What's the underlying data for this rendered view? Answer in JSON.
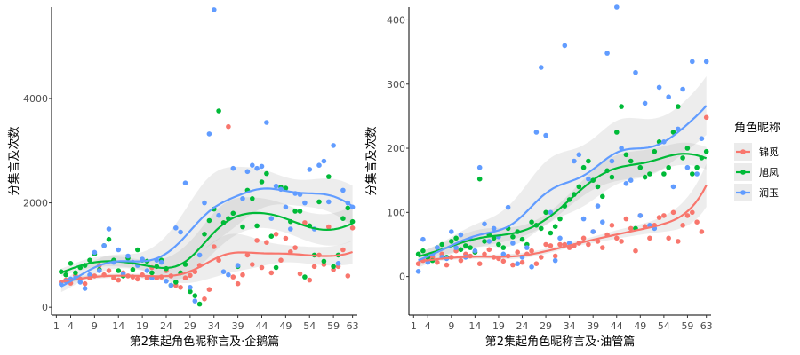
{
  "chart_data": [
    {
      "type": "scatter",
      "xlabel": "第2集起角色昵称言及·企鹅篇",
      "ylabel": "分集言及次数",
      "xlim": [
        0,
        64
      ],
      "ylim": [
        -150,
        5750
      ],
      "x_ticks": [
        1,
        4,
        9,
        14,
        19,
        24,
        29,
        34,
        39,
        44,
        49,
        54,
        59,
        63
      ],
      "y_ticks": [
        0,
        2000,
        4000
      ],
      "smooth": "loess with confidence band",
      "series": [
        {
          "name": "锦觅",
          "x": [
            2,
            3,
            4,
            5,
            6,
            7,
            8,
            9,
            10,
            11,
            12,
            13,
            14,
            15,
            16,
            17,
            18,
            19,
            20,
            21,
            22,
            23,
            24,
            25,
            26,
            27,
            28,
            29,
            30,
            31,
            32,
            33,
            34,
            35,
            36,
            37,
            38,
            39,
            40,
            41,
            42,
            43,
            44,
            45,
            46,
            47,
            48,
            49,
            50,
            51,
            52,
            53,
            54,
            55,
            56,
            57,
            58,
            59,
            60,
            61,
            62,
            63
          ],
          "y": [
            480,
            520,
            460,
            610,
            540,
            450,
            560,
            600,
            800,
            620,
            700,
            560,
            520,
            660,
            600,
            580,
            540,
            620,
            560,
            760,
            560,
            580,
            700,
            600,
            420,
            380,
            560,
            610,
            680,
            800,
            160,
            340,
            1160,
            900,
            1620,
            3460,
            580,
            450,
            620,
            1000,
            820,
            1280,
            760,
            1240,
            660,
            1400,
            900,
            1320,
            1060,
            1140,
            640,
            1620,
            520,
            780,
            1000,
            820,
            1540,
            720,
            780,
            1100,
            600,
            1520
          ]
        },
        {
          "name": "旭凤",
          "x": [
            2,
            3,
            4,
            5,
            6,
            7,
            8,
            9,
            10,
            11,
            12,
            13,
            14,
            15,
            16,
            17,
            18,
            19,
            20,
            21,
            22,
            23,
            24,
            25,
            26,
            27,
            28,
            29,
            30,
            31,
            32,
            33,
            34,
            35,
            36,
            37,
            38,
            39,
            40,
            41,
            42,
            43,
            44,
            45,
            46,
            47,
            48,
            49,
            50,
            51,
            52,
            53,
            54,
            55,
            56,
            57,
            58,
            59,
            60,
            61,
            62,
            63
          ],
          "y": [
            680,
            620,
            840,
            660,
            760,
            800,
            900,
            1020,
            720,
            1180,
            1300,
            900,
            700,
            600,
            940,
            720,
            1100,
            900,
            880,
            660,
            780,
            900,
            740,
            420,
            480,
            660,
            820,
            300,
            220,
            60,
            1400,
            1660,
            1880,
            3760,
            1620,
            1700,
            1800,
            780,
            1540,
            2240,
            2080,
            1560,
            2400,
            2560,
            1360,
            760,
            2300,
            2280,
            1640,
            1840,
            1840,
            580,
            1560,
            1000,
            2020,
            880,
            2500,
            780,
            1000,
            1700,
            1900,
            1640
          ]
        },
        {
          "name": "润玉",
          "x": [
            2,
            3,
            4,
            5,
            6,
            7,
            8,
            9,
            10,
            11,
            12,
            13,
            14,
            15,
            16,
            17,
            18,
            19,
            20,
            21,
            22,
            23,
            24,
            25,
            26,
            27,
            28,
            29,
            30,
            31,
            32,
            33,
            34,
            35,
            36,
            37,
            38,
            39,
            40,
            41,
            42,
            43,
            44,
            45,
            46,
            47,
            48,
            49,
            50,
            51,
            52,
            53,
            54,
            55,
            56,
            57,
            58,
            59,
            60,
            61,
            62,
            63
          ],
          "y": [
            440,
            500,
            540,
            560,
            480,
            360,
            620,
            1050,
            700,
            1180,
            1500,
            860,
            1100,
            640,
            980,
            860,
            800,
            920,
            700,
            560,
            900,
            860,
            500,
            420,
            1520,
            1440,
            2380,
            380,
            120,
            1000,
            2000,
            3320,
            5700,
            1760,
            680,
            620,
            2660,
            800,
            2080,
            2600,
            2720,
            2660,
            2700,
            3540,
            1700,
            2320,
            2260,
            1920,
            1500,
            2180,
            2160,
            2000,
            2640,
            1500,
            2720,
            2800,
            2020,
            3100,
            840,
            2240,
            2000,
            1920
          ]
        }
      ]
    },
    {
      "type": "scatter",
      "xlabel": "第2集起角色昵称言及·油管篇",
      "ylabel": "分集言及次数",
      "xlim": [
        0,
        64
      ],
      "ylim": [
        -60,
        420
      ],
      "x_ticks": [
        1,
        4,
        9,
        14,
        19,
        24,
        29,
        34,
        39,
        44,
        49,
        54,
        59,
        63
      ],
      "y_ticks": [
        0,
        100,
        200,
        300,
        400
      ],
      "smooth": "loess with confidence band",
      "series": [
        {
          "name": "锦觅",
          "x": [
            2,
            3,
            4,
            5,
            6,
            7,
            8,
            9,
            10,
            11,
            12,
            13,
            14,
            15,
            16,
            17,
            18,
            19,
            20,
            21,
            22,
            23,
            24,
            25,
            26,
            27,
            28,
            29,
            30,
            31,
            32,
            33,
            34,
            35,
            36,
            37,
            38,
            39,
            40,
            41,
            42,
            43,
            44,
            45,
            46,
            47,
            48,
            49,
            50,
            51,
            52,
            53,
            54,
            55,
            56,
            57,
            58,
            59,
            60,
            61,
            62,
            63
          ],
          "y": [
            20,
            25,
            28,
            30,
            22,
            35,
            18,
            30,
            40,
            25,
            35,
            32,
            38,
            20,
            35,
            42,
            30,
            28,
            24,
            32,
            18,
            38,
            22,
            35,
            40,
            20,
            30,
            50,
            48,
            32,
            50,
            50,
            45,
            48,
            52,
            60,
            50,
            70,
            55,
            45,
            65,
            80,
            60,
            55,
            90,
            75,
            40,
            95,
            78,
            60,
            80,
            92,
            95,
            60,
            100,
            55,
            80,
            95,
            100,
            85,
            70,
            248
          ]
        },
        {
          "name": "旭凤",
          "x": [
            2,
            3,
            4,
            5,
            6,
            7,
            8,
            9,
            10,
            11,
            12,
            13,
            14,
            15,
            16,
            17,
            18,
            19,
            20,
            21,
            22,
            23,
            24,
            25,
            26,
            27,
            28,
            29,
            30,
            31,
            32,
            33,
            34,
            35,
            36,
            37,
            38,
            39,
            40,
            41,
            42,
            43,
            44,
            45,
            46,
            47,
            48,
            49,
            50,
            51,
            52,
            53,
            54,
            55,
            56,
            57,
            58,
            59,
            60,
            61,
            62,
            63
          ],
          "y": [
            35,
            40,
            30,
            25,
            45,
            50,
            30,
            55,
            60,
            42,
            48,
            45,
            38,
            152,
            55,
            65,
            60,
            50,
            45,
            75,
            62,
            70,
            58,
            50,
            85,
            80,
            75,
            100,
            68,
            78,
            90,
            110,
            120,
            128,
            140,
            170,
            180,
            150,
            140,
            125,
            165,
            155,
            225,
            265,
            190,
            180,
            75,
            170,
            155,
            160,
            195,
            210,
            160,
            170,
            225,
            265,
            185,
            200,
            160,
            170,
            185,
            195
          ]
        },
        {
          "name": "润玉",
          "x": [
            2,
            3,
            4,
            5,
            6,
            7,
            8,
            9,
            10,
            11,
            12,
            13,
            14,
            15,
            16,
            17,
            18,
            19,
            20,
            21,
            22,
            23,
            24,
            25,
            26,
            27,
            28,
            29,
            30,
            31,
            32,
            33,
            34,
            35,
            36,
            37,
            38,
            39,
            40,
            41,
            42,
            43,
            44,
            45,
            46,
            47,
            48,
            49,
            50,
            51,
            52,
            53,
            54,
            55,
            56,
            57,
            58,
            59,
            60,
            61,
            62,
            63
          ],
          "y": [
            8,
            58,
            22,
            35,
            45,
            30,
            28,
            70,
            45,
            65,
            30,
            58,
            40,
            170,
            82,
            55,
            75,
            62,
            35,
            108,
            52,
            20,
            30,
            45,
            15,
            225,
            326,
            220,
            100,
            25,
            60,
            360,
            52,
            180,
            190,
            90,
            152,
            70,
            110,
            85,
            348,
            180,
            420,
            200,
            145,
            150,
            318,
            95,
            270,
            80,
            75,
            295,
            210,
            280,
            140,
            230,
            292,
            170,
            335,
            160,
            215,
            335
          ]
        }
      ]
    }
  ],
  "legend": {
    "title": "角色昵称",
    "items": [
      {
        "name": "锦觅",
        "color": "#F8766D"
      },
      {
        "name": "旭凤",
        "color": "#00BA38"
      },
      {
        "name": "润玉",
        "color": "#619CFF"
      }
    ]
  }
}
